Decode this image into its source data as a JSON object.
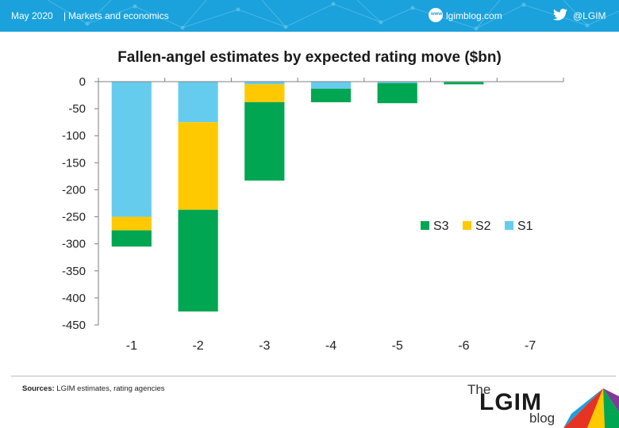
{
  "header": {
    "date": "May 2020",
    "separator": "|",
    "section": "Markets and economics",
    "website_icon_text": "www",
    "website": "lgimblog.com",
    "twitter_handle": "@LGIM",
    "background_color": "#1ba1dc"
  },
  "chart_data": {
    "type": "bar",
    "stacked": true,
    "title": "Fallen-angel estimates by expected rating move ($bn)",
    "xlabel": "",
    "ylabel": "",
    "categories": [
      "-1",
      "-2",
      "-3",
      "-4",
      "-5",
      "-6",
      "-7"
    ],
    "series": [
      {
        "name": "S1",
        "color": "#66ccee",
        "values": [
          -250,
          -75,
          -5,
          -13,
          -3,
          -1,
          0
        ]
      },
      {
        "name": "S2",
        "color": "#ffc900",
        "values": [
          -25,
          -162,
          -33,
          0,
          0,
          0,
          0
        ]
      },
      {
        "name": "S3",
        "color": "#00a651",
        "values": [
          -30,
          -188,
          -145,
          -25,
          -37,
          -4,
          0
        ]
      }
    ],
    "ylim": [
      -450,
      0
    ],
    "yticks": [
      0,
      -50,
      -100,
      -150,
      -200,
      -250,
      -300,
      -350,
      -400,
      -450
    ],
    "grid": false,
    "legend_position": "right"
  },
  "footer": {
    "sources_label": "Sources:",
    "sources_text": "LGIM estimates, rating agencies",
    "logo_the": "The",
    "logo_main": "LGIM",
    "logo_blog": "blog"
  }
}
